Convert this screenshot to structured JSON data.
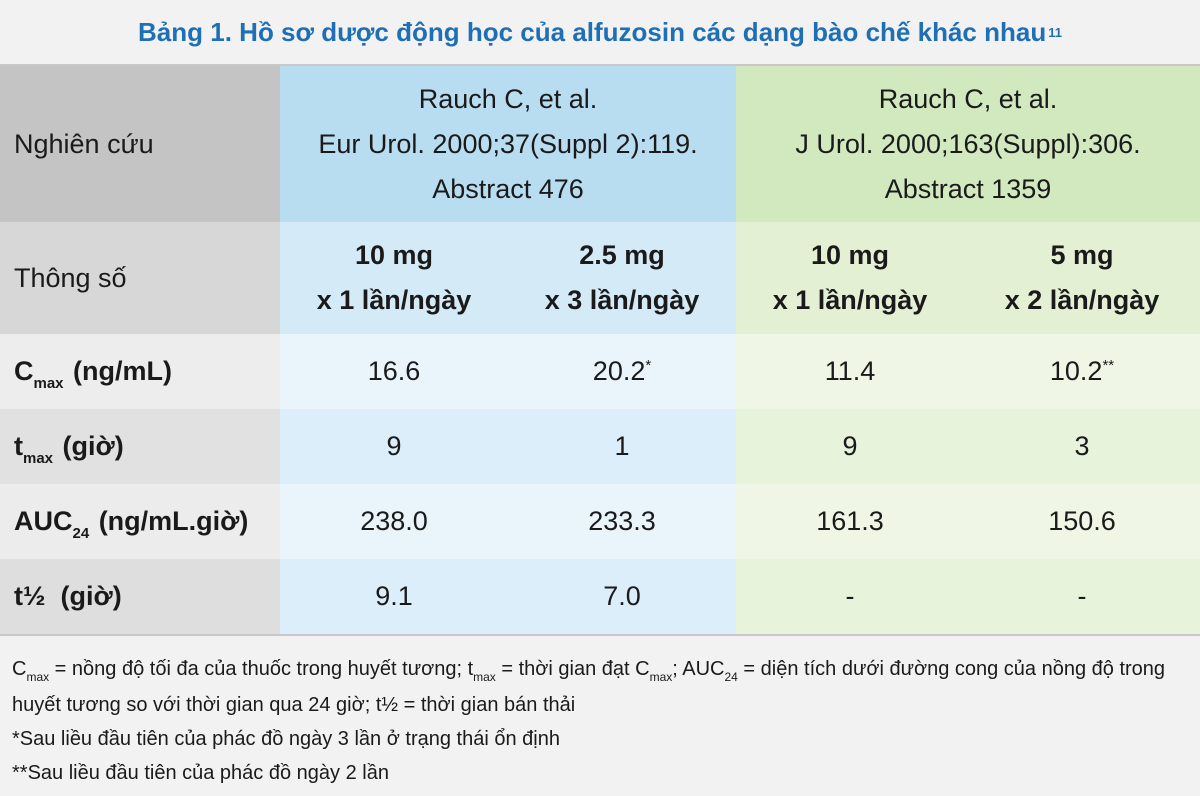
{
  "title": {
    "text": "Bảng 1. Hồ sơ dược động học của alfuzosin các dạng bào chế khác nhau",
    "sup": "11"
  },
  "study_row": {
    "label": "Nghiên cứu",
    "study1": {
      "line1": "Rauch C, et al.",
      "line2": "Eur Urol. 2000;37(Suppl 2):119.",
      "line3": "Abstract 476"
    },
    "study2": {
      "line1": "Rauch C, et al.",
      "line2": "J Urol. 2000;163(Suppl):306.",
      "line3": "Abstract 1359"
    }
  },
  "param_row": {
    "label": "Thông số",
    "doses": [
      {
        "line1": "10 mg",
        "line2": "x 1 lần/ngày"
      },
      {
        "line1": "2.5 mg",
        "line2": "x 3 lần/ngày"
      },
      {
        "line1": "10 mg",
        "line2": "x 1 lần/ngày"
      },
      {
        "line1": "5 mg",
        "line2": "x 2 lần/ngày"
      }
    ]
  },
  "rows": {
    "cmax": {
      "main": "C",
      "sub": "max",
      "rest": " (ng/mL)",
      "values": [
        "16.6",
        "20.2",
        "11.4",
        "10.2"
      ],
      "marks": [
        "",
        "*",
        "",
        "**"
      ]
    },
    "tmax": {
      "main": "t",
      "sub": "max",
      "rest": " (giờ)",
      "values": [
        "9",
        "1",
        "9",
        "3"
      ]
    },
    "auc": {
      "main": "AUC",
      "sub": "24",
      "rest": " (ng/mL.giờ)",
      "values": [
        "238.0",
        "233.3",
        "161.3",
        "150.6"
      ]
    },
    "thalf": {
      "label": "t½  (giờ)",
      "values": [
        "9.1",
        "7.0",
        "-",
        "-"
      ]
    }
  },
  "footnotes": {
    "def": {
      "c": "C",
      "c_sub": "max",
      "p1": " = nồng độ tối đa của thuốc trong huyết tương; t",
      "t_sub": "max",
      "p2": " = thời gian đạt C",
      "c2_sub": "max",
      "p3": "; AUC",
      "auc_sub": "24",
      "p4": " = diện tích dưới đường cong của nồng độ trong huyết tương so với thời gian qua 24 giờ; t½ = thời gian bán thải"
    },
    "note1": "*Sau liều đầu tiên của phác đồ ngày 3 lần ở trạng thái ổn định",
    "note2": "**Sau liều đầu tiên của phác đồ ngày 2 lần"
  },
  "colors": {
    "title": "#1f6fb5",
    "blue_header": "#b8dcf0",
    "green_header": "#d2e8be",
    "gray_header": "#c4c4c4"
  }
}
